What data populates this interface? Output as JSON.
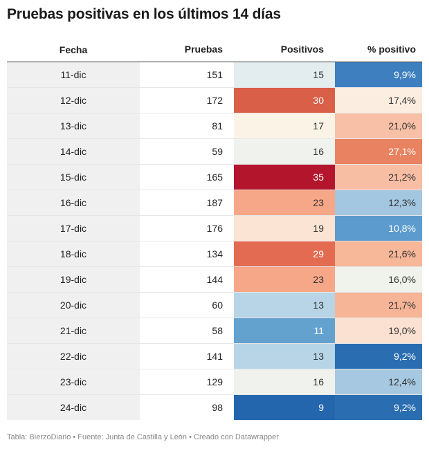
{
  "title": "Pruebas positivas en los últimos 14 días",
  "footer": "Tabla: BierzoDiario • Fuente: Junta de Castilla y León • Creado con Datawrapper",
  "colors": {
    "date_column_bg": "#f0f0f0",
    "header_rule": "#333333",
    "row_divider": "#e6e6e6"
  },
  "chart_data": {
    "type": "table",
    "columns": [
      "Fecha",
      "Pruebas",
      "Positivos",
      "% positivo"
    ],
    "rows": [
      {
        "fecha": "11-dic",
        "pruebas": "151",
        "positivos": "15",
        "pct": "9,9%",
        "pos_bg": "#e3ecef",
        "pos_fg": "#333333",
        "pct_bg": "#3e7fbf",
        "pct_fg": "#ffffff"
      },
      {
        "fecha": "12-dic",
        "pruebas": "172",
        "positivos": "30",
        "pct": "17,4%",
        "pos_bg": "#d95f48",
        "pos_fg": "#ffffff",
        "pct_bg": "#fbeee0",
        "pct_fg": "#333333"
      },
      {
        "fecha": "13-dic",
        "pruebas": "81",
        "positivos": "17",
        "pct": "21,0%",
        "pos_bg": "#fbf4e6",
        "pos_fg": "#333333",
        "pct_bg": "#f8c0a6",
        "pct_fg": "#333333"
      },
      {
        "fecha": "14-dic",
        "pruebas": "59",
        "positivos": "16",
        "pct": "27,1%",
        "pos_bg": "#f0f2ed",
        "pos_fg": "#333333",
        "pct_bg": "#e98260",
        "pct_fg": "#ffffff"
      },
      {
        "fecha": "15-dic",
        "pruebas": "165",
        "positivos": "35",
        "pct": "21,2%",
        "pos_bg": "#b3162c",
        "pos_fg": "#ffffff",
        "pct_bg": "#f8bea3",
        "pct_fg": "#333333"
      },
      {
        "fecha": "16-dic",
        "pruebas": "187",
        "positivos": "23",
        "pct": "12,3%",
        "pos_bg": "#f5a788",
        "pos_fg": "#333333",
        "pct_bg": "#a3c7e0",
        "pct_fg": "#333333"
      },
      {
        "fecha": "17-dic",
        "pruebas": "176",
        "positivos": "19",
        "pct": "10,8%",
        "pos_bg": "#fce4d4",
        "pos_fg": "#333333",
        "pct_bg": "#5c9bcd",
        "pct_fg": "#ffffff"
      },
      {
        "fecha": "18-dic",
        "pruebas": "134",
        "positivos": "29",
        "pct": "21,6%",
        "pos_bg": "#e26b52",
        "pos_fg": "#ffffff",
        "pct_bg": "#f7b799",
        "pct_fg": "#333333"
      },
      {
        "fecha": "19-dic",
        "pruebas": "144",
        "positivos": "23",
        "pct": "16,0%",
        "pos_bg": "#f5a788",
        "pos_fg": "#333333",
        "pct_bg": "#f0f2ec",
        "pct_fg": "#333333"
      },
      {
        "fecha": "20-dic",
        "pruebas": "60",
        "positivos": "13",
        "pct": "21,7%",
        "pos_bg": "#b7d5e7",
        "pos_fg": "#333333",
        "pct_bg": "#f7b597",
        "pct_fg": "#333333"
      },
      {
        "fecha": "21-dic",
        "pruebas": "58",
        "positivos": "11",
        "pct": "19,0%",
        "pos_bg": "#63a1cf",
        "pos_fg": "#ffffff",
        "pct_bg": "#fbe1d1",
        "pct_fg": "#333333"
      },
      {
        "fecha": "22-dic",
        "pruebas": "141",
        "positivos": "13",
        "pct": "9,2%",
        "pos_bg": "#b7d5e7",
        "pos_fg": "#333333",
        "pct_bg": "#2a6db1",
        "pct_fg": "#ffffff"
      },
      {
        "fecha": "23-dic",
        "pruebas": "129",
        "positivos": "16",
        "pct": "12,4%",
        "pos_bg": "#f0f2ed",
        "pos_fg": "#333333",
        "pct_bg": "#a6c8e1",
        "pct_fg": "#333333"
      },
      {
        "fecha": "24-dic",
        "pruebas": "98",
        "positivos": "9",
        "pct": "9,2%",
        "pos_bg": "#2366ad",
        "pos_fg": "#ffffff",
        "pct_bg": "#2a6db1",
        "pct_fg": "#ffffff"
      }
    ]
  }
}
